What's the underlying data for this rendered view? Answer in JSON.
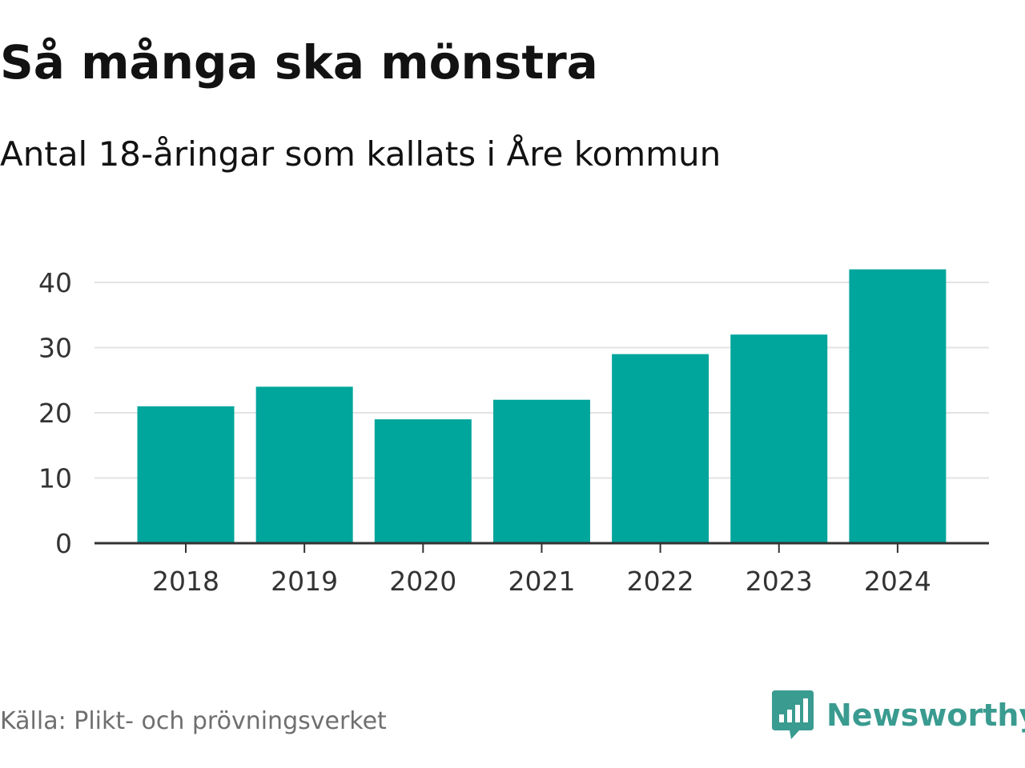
{
  "header": {
    "title": "Så många ska mönstra",
    "subtitle": "Antal 18-åringar som kallats i Åre kommun"
  },
  "footer": {
    "source": "Källa: Plikt- och prövningsverket",
    "brand": "Newsworthy",
    "brand_icon": "bar-chart-speech-bubble-icon"
  },
  "colors": {
    "bar": "#00a59c",
    "grid": "#e3e3e3",
    "axis": "#333333",
    "brand": "#3a9b90"
  },
  "chart_data": {
    "type": "bar",
    "title": "Så många ska mönstra",
    "subtitle": "Antal 18-åringar som kallats i Åre kommun",
    "xlabel": "",
    "ylabel": "",
    "categories": [
      "2018",
      "2019",
      "2020",
      "2021",
      "2022",
      "2023",
      "2024"
    ],
    "values": [
      21,
      24,
      19,
      22,
      29,
      32,
      42
    ],
    "ylim": [
      0,
      40
    ],
    "yticks": [
      0,
      10,
      20,
      30,
      40
    ],
    "grid": true,
    "legend": "none"
  }
}
